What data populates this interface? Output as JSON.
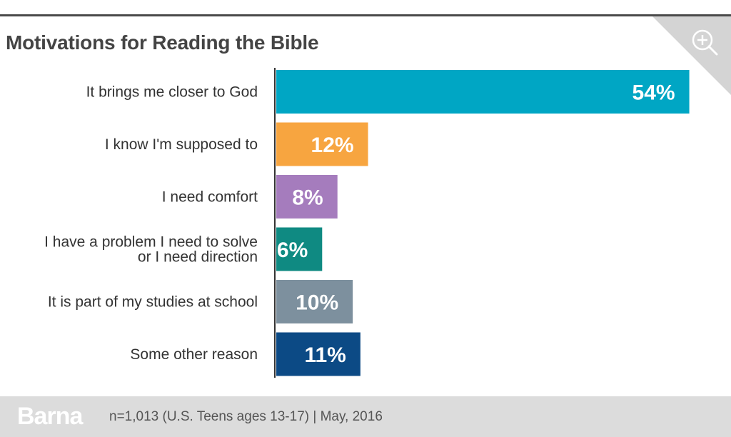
{
  "header": {
    "zoom_icon": "zoom-in-magnifier-icon"
  },
  "footer": {
    "brand": "Barna",
    "note": "n=1,013 (U.S. Teens ages 13-17) | May, 2016"
  },
  "chart_data": {
    "type": "bar",
    "orientation": "horizontal",
    "title": "Motivations for Reading the Bible",
    "xlabel": "",
    "ylabel": "",
    "grid": false,
    "xlim": [
      0,
      56
    ],
    "categories": [
      [
        "It brings me closer to God"
      ],
      [
        "I know I'm supposed to"
      ],
      [
        "I need comfort"
      ],
      [
        "I have a problem I need to solve",
        "or I need direction"
      ],
      [
        "It is part of my studies at school"
      ],
      [
        "Some other reason"
      ]
    ],
    "values": [
      54,
      12,
      8,
      6,
      10,
      11
    ],
    "value_labels": [
      "54%",
      "12%",
      "8%",
      "6%",
      "10%",
      "11%"
    ],
    "colors": [
      "#00a6c4",
      "#f7a540",
      "#a57cbd",
      "#0f8a82",
      "#7d909e",
      "#0c4a85"
    ]
  }
}
